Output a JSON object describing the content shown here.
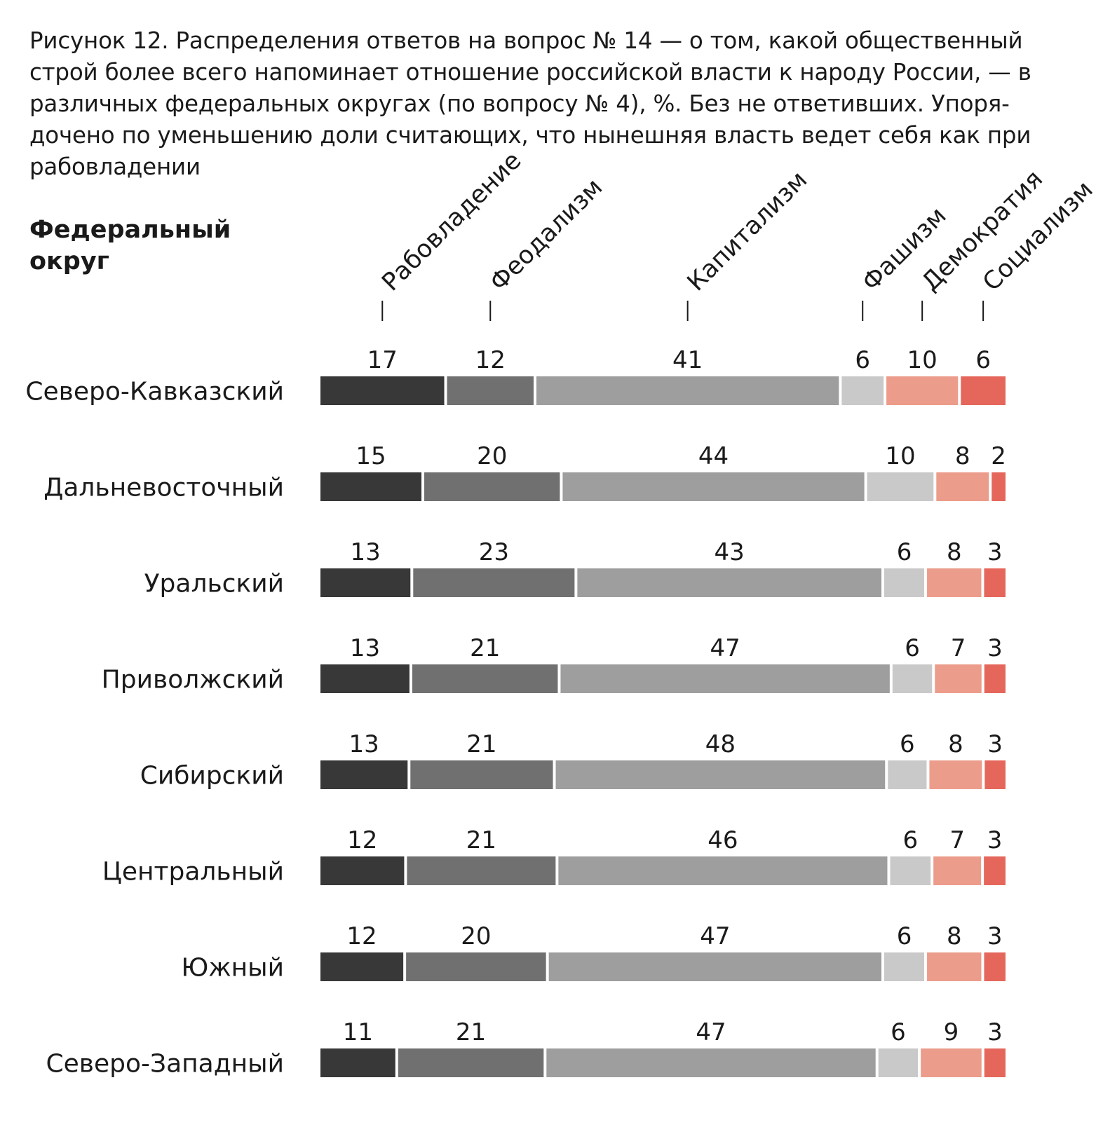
{
  "caption": "Рисунок 12. Распределения ответов на вопрос № 14 — о том, какой общественный строй более всего напоминает отношение российской власти к народу России, — в различных федеральных округах (по вопросу № 4), %. Без не ответивших. Упоря­дочено по уменьшению доли считающих, что нынешняя власть ведет себя как при рабовладении",
  "row_axis_title": "Федеральный округ",
  "colors": {
    "Рабовладение": "#383838",
    "Феодализм": "#707070",
    "Капитализм": "#9e9e9e",
    "Фашизм": "#c9c9c9",
    "Демократия": "#ec9c8a",
    "Социализм": "#e5675b"
  },
  "chart_data": {
    "type": "bar",
    "orientation": "horizontal",
    "stacked": true,
    "unit": "%",
    "categories": [
      "Северо-Кавказский",
      "Дальневосточный",
      "Уральский",
      "Приволжский",
      "Сибирский",
      "Центральный",
      "Южный",
      "Северо-Западный"
    ],
    "series": [
      {
        "name": "Рабовладение",
        "values": [
          17,
          15,
          13,
          13,
          13,
          12,
          12,
          11
        ]
      },
      {
        "name": "Феодализм",
        "values": [
          12,
          20,
          23,
          21,
          21,
          21,
          20,
          21
        ]
      },
      {
        "name": "Капитализм",
        "values": [
          41,
          44,
          43,
          47,
          48,
          46,
          47,
          47
        ]
      },
      {
        "name": "Фашизм",
        "values": [
          6,
          10,
          6,
          6,
          6,
          6,
          6,
          6
        ]
      },
      {
        "name": "Демократия",
        "values": [
          10,
          8,
          8,
          7,
          8,
          7,
          8,
          9
        ]
      },
      {
        "name": "Социализм",
        "values": [
          6,
          2,
          3,
          3,
          3,
          3,
          3,
          3
        ]
      }
    ],
    "legend": "rotated labels above first bar"
  }
}
